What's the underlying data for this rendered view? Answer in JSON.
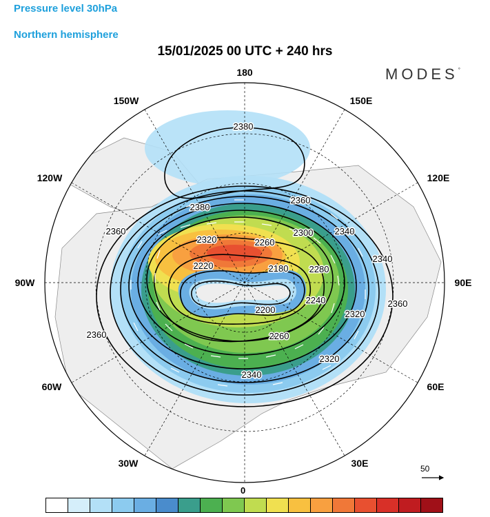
{
  "header": {
    "level": "Pressure level 30hPa",
    "hemisphere": "Northern hemisphere",
    "title": "15/01/2025  00 UTC  + 240 hrs",
    "logo": "MODES",
    "logo_mark": "°"
  },
  "longitude_labels": {
    "top": "180",
    "bottom": "0",
    "left": "90W",
    "right": "90E",
    "upper_left": "150W",
    "upper_right": "150E",
    "mid_upper_left": "120W",
    "mid_upper_right": "120E",
    "mid_lower_left": "60W",
    "mid_lower_right": "60E",
    "lower_left": "30W",
    "lower_right": "30E"
  },
  "contour_labels": [
    "2380",
    "2380",
    "2360",
    "2360",
    "2360",
    "2340",
    "2340",
    "2320",
    "2320",
    "2300",
    "2280",
    "2260",
    "2260",
    "2240",
    "2220",
    "2200",
    "2180",
    "2360",
    "2340",
    "2320"
  ],
  "wind_scale": {
    "value": "50"
  },
  "colorbar": {
    "colors": [
      "#ffffff",
      "#d5eefa",
      "#b3e0f7",
      "#8ccbef",
      "#6aaee3",
      "#4a8ccc",
      "#3a9e8c",
      "#4cb050",
      "#7fc850",
      "#c0dc50",
      "#f0e050",
      "#f8c040",
      "#f8a040",
      "#f07838",
      "#e85030",
      "#d83028",
      "#c01c20",
      "#a01018"
    ]
  },
  "colors": {
    "header_blue": "#1ea0dc",
    "land": "#eeeeee",
    "coast": "#888888"
  }
}
